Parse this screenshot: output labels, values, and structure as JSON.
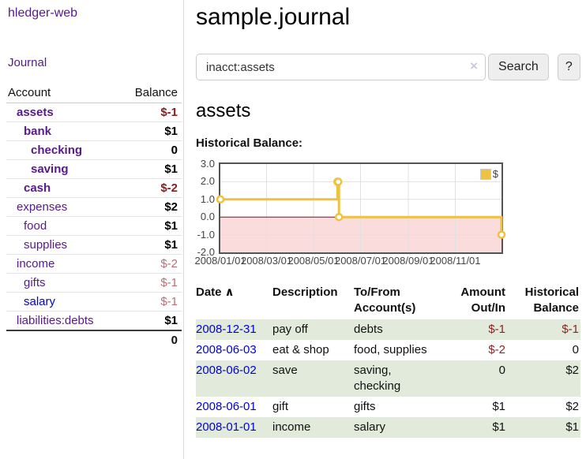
{
  "colors": {
    "link_purple": "#551a8b",
    "link_blue": "#0000dd",
    "negative_strong": "#8b1c1c",
    "negative_light": "#bf6d72",
    "row_stripe_green": "#e1eadb",
    "chart_line": "#edc240",
    "chart_negative_fill": "#fbdcdc",
    "chart_zero_line": "#a40000",
    "chart_grid": "#e0e0e0"
  },
  "sidebar": {
    "brand": "hledger-web",
    "journal_link": "Journal",
    "table": {
      "headers": [
        "Account",
        "Balance"
      ],
      "rows": [
        {
          "name": "assets",
          "balance": "$-1",
          "level": 0,
          "bold": true,
          "blue": false
        },
        {
          "name": "bank",
          "balance": "$1",
          "level": 1,
          "bold": true,
          "blue": false
        },
        {
          "name": "checking",
          "balance": "0",
          "level": 2,
          "bold": true,
          "blue": false
        },
        {
          "name": "saving",
          "balance": "$1",
          "level": 2,
          "bold": true,
          "blue": false
        },
        {
          "name": "cash",
          "balance": "$-2",
          "level": 1,
          "bold": true,
          "blue": false
        },
        {
          "name": "expenses",
          "balance": "$2",
          "level": 0,
          "bold": false,
          "blue": false
        },
        {
          "name": "food",
          "balance": "$1",
          "level": 1,
          "bold": false,
          "blue": false
        },
        {
          "name": "supplies",
          "balance": "$1",
          "level": 1,
          "bold": false,
          "blue": false
        },
        {
          "name": "income",
          "balance": "$-2",
          "level": 0,
          "bold": false,
          "blue": false
        },
        {
          "name": "gifts",
          "balance": "$-1",
          "level": 1,
          "bold": false,
          "blue": false
        },
        {
          "name": "salary",
          "balance": "$-1",
          "level": 1,
          "bold": false,
          "blue": true
        },
        {
          "name": "liabilities:debts",
          "balance": "$1",
          "level": 0,
          "bold": false,
          "blue": false
        }
      ],
      "total": "0"
    }
  },
  "main": {
    "title": "sample.journal",
    "search": {
      "value": "inacct:assets",
      "clear_icon": "×",
      "button": "Search",
      "help_button": "?"
    },
    "account_heading": "assets",
    "chart_heading": "Historical Balance:"
  },
  "chart_data": {
    "type": "line",
    "style": "step",
    "title": "Historical Balance",
    "legend": "$",
    "legend_position": "top-right",
    "grid": true,
    "ylim": [
      -2,
      3
    ],
    "y_ticks": [
      "3.0",
      "2.0",
      "1.0",
      "0.0",
      "-1.0",
      "-2.0"
    ],
    "x_ticks": [
      "2008/01/01",
      "2008/03/01",
      "2008/05/01",
      "2008/07/01",
      "2008/09/01",
      "2008/11/01"
    ],
    "series": [
      {
        "name": "$",
        "color": "#edc240",
        "points": [
          {
            "date": "2008-01-01",
            "value": 1
          },
          {
            "date": "2008-06-01",
            "value": 2
          },
          {
            "date": "2008-06-02",
            "value": 2
          },
          {
            "date": "2008-06-03",
            "value": 0
          },
          {
            "date": "2008-12-31",
            "value": -1
          }
        ]
      }
    ]
  },
  "register": {
    "headers": {
      "date": "Date",
      "description": "Description",
      "accounts": "To/From Account(s)",
      "amount": "Amount Out/In",
      "balance": "Historical Balance"
    },
    "sort_icon_glyph": "∧",
    "rows": [
      {
        "date": "2008-12-31",
        "description": "pay off",
        "accounts": "debts",
        "amount": "$-1",
        "balance": "$-1"
      },
      {
        "date": "2008-06-03",
        "description": "eat & shop",
        "accounts": "food, supplies",
        "amount": "$-2",
        "balance": "0"
      },
      {
        "date": "2008-06-02",
        "description": "save",
        "accounts": "saving, checking",
        "amount": "0",
        "balance": "$2"
      },
      {
        "date": "2008-06-01",
        "description": "gift",
        "accounts": "gifts",
        "amount": "$1",
        "balance": "$2"
      },
      {
        "date": "2008-01-01",
        "description": "income",
        "accounts": "salary",
        "amount": "$1",
        "balance": "$1"
      }
    ]
  }
}
